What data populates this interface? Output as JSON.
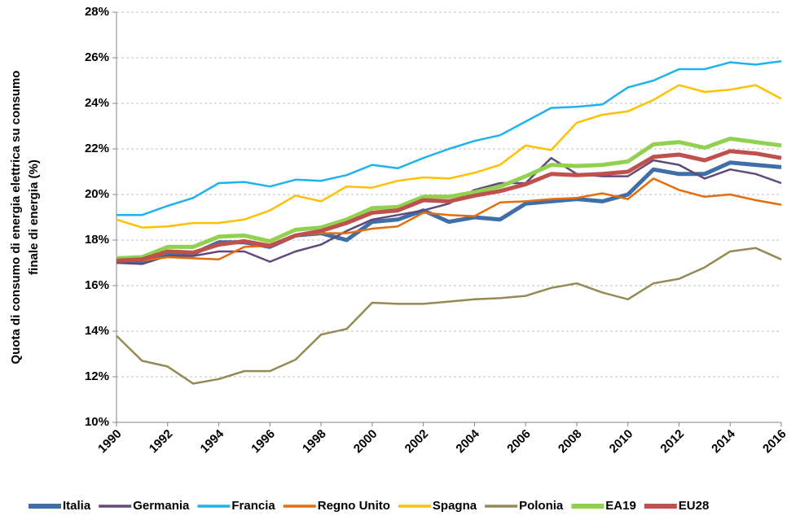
{
  "chart_data": {
    "type": "line",
    "ylabel": [
      "Quota di consumo di energia elettrica su consumo",
      "finale di energia (%)"
    ],
    "x": [
      1990,
      1991,
      1992,
      1993,
      1994,
      1995,
      1996,
      1997,
      1998,
      1999,
      2000,
      2001,
      2002,
      2003,
      2004,
      2005,
      2006,
      2007,
      2008,
      2009,
      2010,
      2011,
      2012,
      2013,
      2014,
      2015,
      2016
    ],
    "xlim": [
      1990,
      2016
    ],
    "xticks": [
      1990,
      1992,
      1994,
      1996,
      1998,
      2000,
      2002,
      2004,
      2006,
      2008,
      2010,
      2012,
      2014,
      2016
    ],
    "ylim": [
      10,
      28
    ],
    "yticks": [
      {
        "value": 10,
        "label": "10%"
      },
      {
        "value": 12,
        "label": "12%"
      },
      {
        "value": 14,
        "label": "14%"
      },
      {
        "value": 16,
        "label": "16%"
      },
      {
        "value": 18,
        "label": "18%"
      },
      {
        "value": 20,
        "label": "20%"
      },
      {
        "value": 22,
        "label": "22%"
      },
      {
        "value": 24,
        "label": "24%"
      },
      {
        "value": 26,
        "label": "26%"
      },
      {
        "value": 28,
        "label": "28%"
      }
    ],
    "grid": true,
    "legend": "bottom",
    "series": [
      {
        "name": "Italia",
        "color": "#3f6fa8",
        "linewidth": 5,
        "values": [
          17.1,
          17.0,
          17.4,
          17.4,
          17.9,
          17.9,
          17.7,
          18.2,
          18.3,
          18.0,
          18.8,
          18.9,
          19.3,
          18.8,
          19.0,
          18.9,
          19.6,
          19.7,
          19.8,
          19.7,
          20.0,
          21.1,
          20.9,
          20.9,
          21.4,
          21.3,
          21.2
        ]
      },
      {
        "name": "Germania",
        "color": "#604a7b",
        "linewidth": 2.5,
        "values": [
          17.0,
          16.95,
          17.3,
          17.3,
          17.5,
          17.5,
          17.05,
          17.5,
          17.8,
          18.4,
          18.9,
          19.1,
          19.3,
          19.6,
          20.2,
          20.5,
          20.5,
          21.6,
          20.9,
          20.8,
          20.8,
          21.5,
          21.3,
          20.7,
          21.1,
          20.9,
          20.5
        ]
      },
      {
        "name": "Francia",
        "color": "#1fb2ee",
        "linewidth": 2.5,
        "values": [
          19.1,
          19.1,
          19.5,
          19.85,
          20.5,
          20.55,
          20.35,
          20.65,
          20.6,
          20.85,
          21.3,
          21.15,
          21.6,
          22.0,
          22.35,
          22.6,
          23.2,
          23.8,
          23.85,
          23.95,
          24.7,
          25.0,
          25.5,
          25.5,
          25.8,
          25.7,
          25.85
        ]
      },
      {
        "name": "Regno Unito",
        "color": "#e46c0a",
        "linewidth": 2.5,
        "values": [
          17.1,
          17.1,
          17.25,
          17.2,
          17.15,
          17.7,
          17.75,
          18.2,
          18.3,
          18.3,
          18.5,
          18.6,
          19.2,
          19.1,
          19.05,
          19.65,
          19.7,
          19.8,
          19.85,
          20.05,
          19.8,
          20.7,
          20.2,
          19.9,
          20.0,
          19.75,
          19.55
        ]
      },
      {
        "name": "Spagna",
        "color": "#ffc000",
        "linewidth": 2.5,
        "values": [
          18.9,
          18.55,
          18.6,
          18.75,
          18.75,
          18.9,
          19.3,
          19.95,
          19.7,
          20.35,
          20.3,
          20.6,
          20.75,
          20.7,
          20.95,
          21.3,
          22.15,
          21.95,
          23.15,
          23.5,
          23.65,
          24.15,
          24.8,
          24.5,
          24.6,
          24.8,
          24.2
        ]
      },
      {
        "name": "Polonia",
        "color": "#948a54",
        "linewidth": 2.5,
        "values": [
          13.8,
          12.7,
          12.45,
          11.7,
          11.9,
          12.25,
          12.25,
          12.75,
          13.85,
          14.1,
          15.25,
          15.2,
          15.2,
          15.3,
          15.4,
          15.45,
          15.55,
          15.9,
          16.1,
          15.7,
          15.4,
          16.1,
          16.3,
          16.8,
          17.5,
          17.65,
          17.15
        ]
      },
      {
        "name": "EA19",
        "color": "#92d050",
        "linewidth": 5,
        "values": [
          17.2,
          17.25,
          17.7,
          17.7,
          18.15,
          18.2,
          17.95,
          18.45,
          18.55,
          18.9,
          19.4,
          19.45,
          19.9,
          19.9,
          20.1,
          20.35,
          20.8,
          21.3,
          21.25,
          21.3,
          21.45,
          22.2,
          22.3,
          22.05,
          22.45,
          22.3,
          22.15
        ]
      },
      {
        "name": "EU28",
        "color": "#c0504d",
        "linewidth": 5,
        "values": [
          17.1,
          17.15,
          17.5,
          17.45,
          17.8,
          17.95,
          17.75,
          18.2,
          18.4,
          18.75,
          19.2,
          19.3,
          19.75,
          19.7,
          19.95,
          20.15,
          20.45,
          20.9,
          20.85,
          20.9,
          21.0,
          21.65,
          21.75,
          21.5,
          21.9,
          21.8,
          21.6
        ]
      }
    ]
  }
}
